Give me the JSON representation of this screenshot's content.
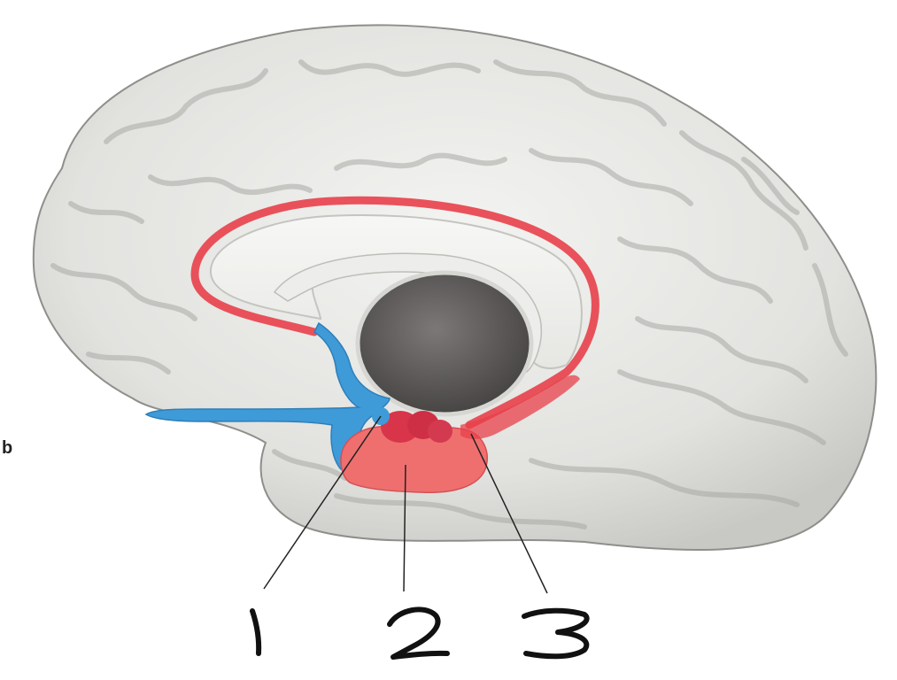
{
  "figure": {
    "panel_label": "b",
    "callouts": [
      {
        "number": "1"
      },
      {
        "number": "2"
      },
      {
        "number": "3"
      }
    ]
  },
  "colors": {
    "cortex": "#e4e4e2",
    "gyrus_shadow": "#b9b9b6",
    "cingulate_outline": "#e8404a",
    "septal_area_blue": "#3f9ad8",
    "amygdala": "#d8354a",
    "hippocampal_region": "#ef6f6f",
    "ventricle": "#5f5c5c"
  }
}
